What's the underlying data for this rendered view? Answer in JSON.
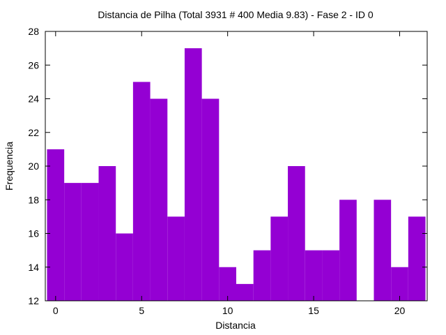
{
  "chart_data": {
    "type": "bar",
    "title": "Distancia de Pilha (Total 3931 # 400 Media 9.83) - Fase  2 - ID 0",
    "xlabel": "Distancia",
    "ylabel": "Frequencia",
    "xlim": [
      -0.6,
      21.6
    ],
    "ylim": [
      12,
      28
    ],
    "x_ticks": [
      0,
      5,
      10,
      15,
      20
    ],
    "y_ticks": [
      12,
      14,
      16,
      18,
      20,
      22,
      24,
      26,
      28
    ],
    "grid": false,
    "legend": "none",
    "bar_color": "#9400D3",
    "x": [
      0,
      1,
      2,
      3,
      4,
      5,
      6,
      7,
      8,
      9,
      10,
      11,
      12,
      13,
      14,
      15,
      16,
      17,
      18,
      19,
      20,
      21
    ],
    "values": [
      21,
      19,
      19,
      20,
      16,
      25,
      24,
      17,
      27,
      24,
      14,
      13,
      15,
      17,
      20,
      15,
      15,
      18,
      12,
      18,
      14,
      17
    ]
  }
}
